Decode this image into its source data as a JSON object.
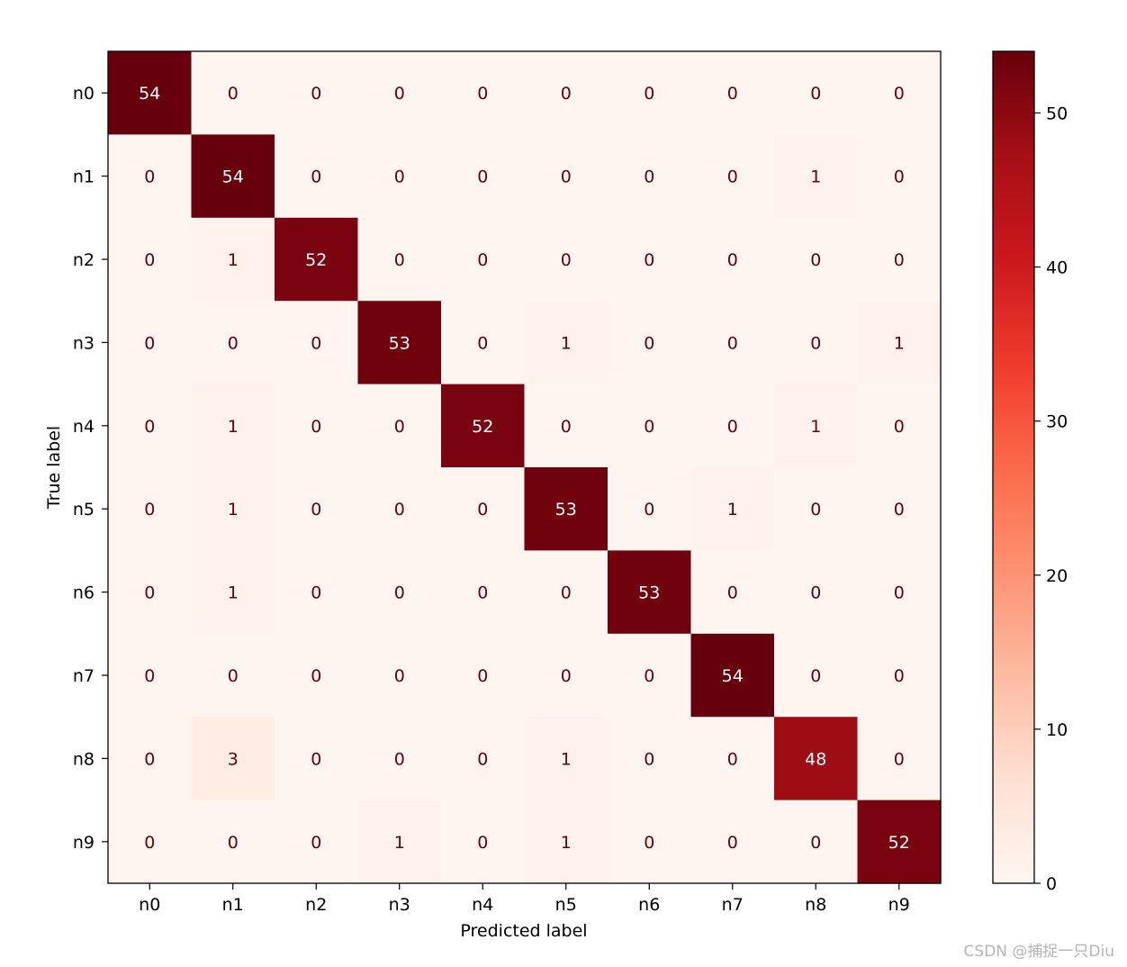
{
  "chart_data": {
    "type": "heatmap",
    "title": "",
    "xlabel": "Predicted label",
    "ylabel": "True label",
    "x_categories": [
      "n0",
      "n1",
      "n2",
      "n3",
      "n4",
      "n5",
      "n6",
      "n7",
      "n8",
      "n9"
    ],
    "y_categories": [
      "n0",
      "n1",
      "n2",
      "n3",
      "n4",
      "n5",
      "n6",
      "n7",
      "n8",
      "n9"
    ],
    "values": [
      [
        54,
        0,
        0,
        0,
        0,
        0,
        0,
        0,
        0,
        0
      ],
      [
        0,
        54,
        0,
        0,
        0,
        0,
        0,
        0,
        1,
        0
      ],
      [
        0,
        1,
        52,
        0,
        0,
        0,
        0,
        0,
        0,
        0
      ],
      [
        0,
        0,
        0,
        53,
        0,
        1,
        0,
        0,
        0,
        1
      ],
      [
        0,
        1,
        0,
        0,
        52,
        0,
        0,
        0,
        1,
        0
      ],
      [
        0,
        1,
        0,
        0,
        0,
        53,
        0,
        1,
        0,
        0
      ],
      [
        0,
        1,
        0,
        0,
        0,
        0,
        53,
        0,
        0,
        0
      ],
      [
        0,
        0,
        0,
        0,
        0,
        0,
        0,
        54,
        0,
        0
      ],
      [
        0,
        3,
        0,
        0,
        0,
        1,
        0,
        0,
        48,
        0
      ],
      [
        0,
        0,
        0,
        1,
        0,
        1,
        0,
        0,
        0,
        52
      ]
    ],
    "colormap": "Reds",
    "colorbar": {
      "range": [
        0,
        54
      ],
      "ticks": [
        0,
        10,
        20,
        30,
        40,
        50
      ]
    },
    "grid": false
  },
  "watermark": "CSDN @捕捉一只Diu"
}
